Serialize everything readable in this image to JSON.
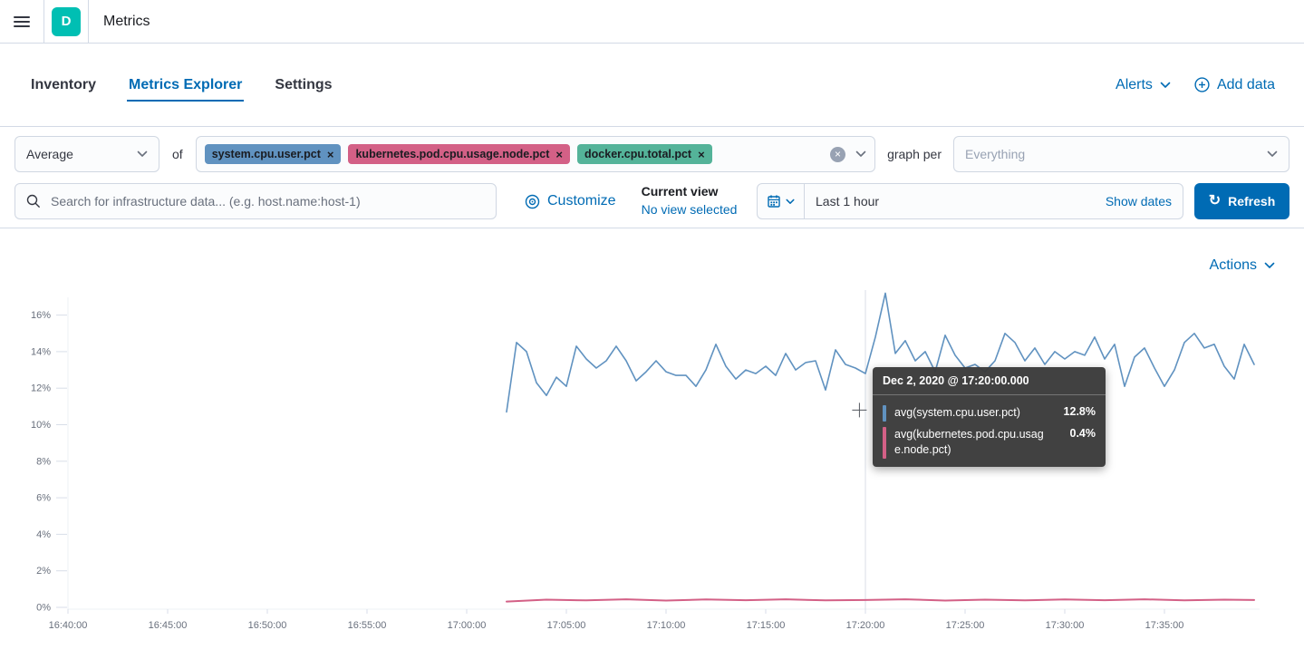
{
  "header": {
    "app_initial": "D",
    "title": "Metrics"
  },
  "tabs": {
    "items": [
      {
        "label": "Inventory",
        "active": false
      },
      {
        "label": "Metrics Explorer",
        "active": true
      },
      {
        "label": "Settings",
        "active": false
      }
    ],
    "alerts_label": "Alerts",
    "add_data_label": "Add data"
  },
  "controls": {
    "aggregation_value": "Average",
    "of_label": "of",
    "metrics": [
      {
        "label": "system.cpu.user.pct",
        "color": "#6092C0"
      },
      {
        "label": "kubernetes.pod.cpu.usage.node.pct",
        "color": "#D36086"
      },
      {
        "label": "docker.cpu.total.pct",
        "color": "#54B399"
      }
    ],
    "graph_per_label": "graph per",
    "graph_per_placeholder": "Everything",
    "search_placeholder": "Search for infrastructure data... (e.g. host.name:host-1)",
    "customize_label": "Customize",
    "current_view_label": "Current view",
    "current_view_value": "No view selected",
    "time_range_value": "Last 1 hour",
    "show_dates_label": "Show dates",
    "refresh_label": "Refresh"
  },
  "chart_header": {
    "actions_label": "Actions"
  },
  "tooltip": {
    "title": "Dec 2, 2020 @ 17:20:00.000",
    "rows": [
      {
        "label": "avg(system.cpu.user.pct)",
        "value": "12.8%",
        "color": "#6092C0"
      },
      {
        "label": "avg(kubernetes.pod.cpu.usage.node.pct)",
        "value": "0.4%",
        "color": "#D36086"
      }
    ]
  },
  "chart_data": {
    "type": "line",
    "title": "",
    "xlabel": "",
    "ylabel": "",
    "grid": false,
    "legend_position": "none",
    "x_axis": {
      "tick_labels": [
        "16:40:00",
        "16:45:00",
        "16:50:00",
        "16:55:00",
        "17:00:00",
        "17:05:00",
        "17:10:00",
        "17:15:00",
        "17:20:00",
        "17:25:00",
        "17:30:00",
        "17:35:00"
      ],
      "tick_minutes": [
        0,
        5,
        10,
        15,
        20,
        25,
        30,
        35,
        40,
        45,
        50,
        55
      ],
      "range_start": "16:40:00",
      "range_end": "17:40:00"
    },
    "y_axis": {
      "unit": "%",
      "tick_values": [
        0,
        2,
        4,
        6,
        8,
        10,
        12,
        14,
        16
      ],
      "min": 0,
      "max": 17.4
    },
    "hover": {
      "time": "Dec 2, 2020 @ 17:20:00.000",
      "minute": 40,
      "cursor_minute": 39.7,
      "cursor_pct": 10.8
    },
    "series": [
      {
        "name": "avg(system.cpu.user.pct)",
        "color": "#6092C0",
        "points": [
          [
            22,
            10.7
          ],
          [
            22.5,
            14.5
          ],
          [
            23,
            14.0
          ],
          [
            23.5,
            12.3
          ],
          [
            24,
            11.6
          ],
          [
            24.5,
            12.6
          ],
          [
            25,
            12.1
          ],
          [
            25.5,
            14.3
          ],
          [
            26,
            13.6
          ],
          [
            26.5,
            13.1
          ],
          [
            27,
            13.5
          ],
          [
            27.5,
            14.3
          ],
          [
            28,
            13.5
          ],
          [
            28.5,
            12.4
          ],
          [
            29,
            12.9
          ],
          [
            29.5,
            13.5
          ],
          [
            30,
            12.9
          ],
          [
            30.5,
            12.7
          ],
          [
            31,
            12.7
          ],
          [
            31.5,
            12.1
          ],
          [
            32,
            13.0
          ],
          [
            32.5,
            14.4
          ],
          [
            33,
            13.2
          ],
          [
            33.5,
            12.5
          ],
          [
            34,
            13.0
          ],
          [
            34.5,
            12.8
          ],
          [
            35,
            13.2
          ],
          [
            35.5,
            12.7
          ],
          [
            36,
            13.9
          ],
          [
            36.5,
            13.0
          ],
          [
            37,
            13.4
          ],
          [
            37.5,
            13.5
          ],
          [
            38,
            11.9
          ],
          [
            38.5,
            14.1
          ],
          [
            39,
            13.3
          ],
          [
            39.5,
            13.1
          ],
          [
            40,
            12.8
          ],
          [
            40.5,
            14.8
          ],
          [
            41,
            17.2
          ],
          [
            41.5,
            13.9
          ],
          [
            42,
            14.6
          ],
          [
            42.5,
            13.5
          ],
          [
            43,
            14.0
          ],
          [
            43.5,
            12.9
          ],
          [
            44,
            14.9
          ],
          [
            44.5,
            13.8
          ],
          [
            45,
            13.1
          ],
          [
            45.5,
            13.3
          ],
          [
            46,
            12.9
          ],
          [
            46.5,
            13.5
          ],
          [
            47,
            15.0
          ],
          [
            47.5,
            14.5
          ],
          [
            48,
            13.5
          ],
          [
            48.5,
            14.2
          ],
          [
            49,
            13.3
          ],
          [
            49.5,
            14.0
          ],
          [
            50,
            13.6
          ],
          [
            50.5,
            14.0
          ],
          [
            51,
            13.8
          ],
          [
            51.5,
            14.8
          ],
          [
            52,
            13.6
          ],
          [
            52.5,
            14.4
          ],
          [
            53,
            12.1
          ],
          [
            53.5,
            13.7
          ],
          [
            54,
            14.2
          ],
          [
            54.5,
            13.1
          ],
          [
            55,
            12.1
          ],
          [
            55.5,
            13.0
          ],
          [
            56,
            14.5
          ],
          [
            56.5,
            15.0
          ],
          [
            57,
            14.2
          ],
          [
            57.5,
            14.4
          ],
          [
            58,
            13.2
          ],
          [
            58.5,
            12.5
          ],
          [
            59,
            14.4
          ],
          [
            59.5,
            13.3
          ]
        ]
      },
      {
        "name": "avg(kubernetes.pod.cpu.usage.node.pct)",
        "color": "#D36086",
        "points": [
          [
            22,
            0.32
          ],
          [
            24,
            0.42
          ],
          [
            26,
            0.38
          ],
          [
            28,
            0.44
          ],
          [
            30,
            0.37
          ],
          [
            32,
            0.43
          ],
          [
            34,
            0.39
          ],
          [
            36,
            0.44
          ],
          [
            38,
            0.38
          ],
          [
            40,
            0.4
          ],
          [
            42,
            0.44
          ],
          [
            44,
            0.37
          ],
          [
            46,
            0.42
          ],
          [
            48,
            0.38
          ],
          [
            50,
            0.43
          ],
          [
            52,
            0.39
          ],
          [
            54,
            0.44
          ],
          [
            56,
            0.38
          ],
          [
            58,
            0.42
          ],
          [
            59.5,
            0.4
          ]
        ]
      },
      {
        "name": "avg(docker.cpu.total.pct)",
        "color": "#54B399",
        "points": []
      }
    ]
  }
}
